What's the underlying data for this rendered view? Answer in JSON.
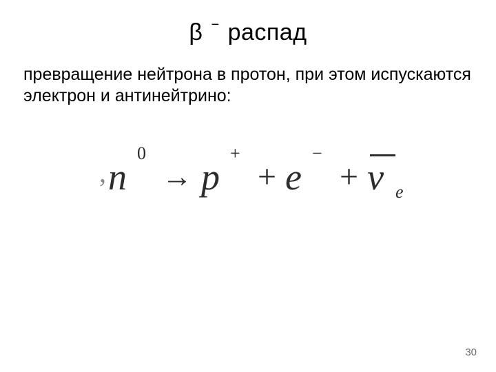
{
  "title": {
    "symbol": "β",
    "superscript": "−",
    "word": "распад"
  },
  "body": "превращение нейтрона в протон, при этом испускаются электрон и антинейтрино:",
  "formula": {
    "lead_dot": ",",
    "n_base": "n",
    "n_sup": "0",
    "arrow": "→",
    "p_base": "p",
    "p_sup": "+",
    "plus": "+",
    "e_base": "e",
    "e_sup": "−",
    "nu_base": "ν",
    "nu_sub": "e"
  },
  "page_number": "30",
  "colors": {
    "background": "#ffffff",
    "text": "#000000",
    "formula_text": "#2d2d2d",
    "page_num": "#6b6b6b"
  },
  "fonts": {
    "body_family": "Arial",
    "formula_family": "Times New Roman",
    "title_size_pt": 34,
    "body_size_pt": 25,
    "formula_size_pt": 54,
    "page_num_size_pt": 15
  }
}
